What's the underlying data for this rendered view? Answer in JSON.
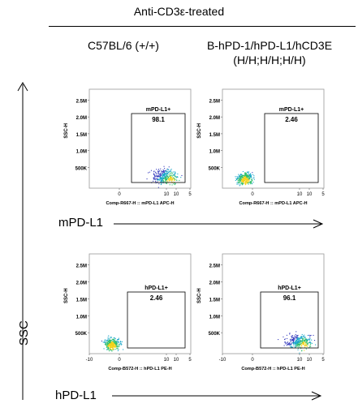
{
  "header": {
    "title": "Anti-CD3ε-treated",
    "columns": [
      "C57BL/6 (+/+)",
      "B-hPD-1/hPD-L1/hCD3E",
      "(H/H;H/H;H/H)"
    ]
  },
  "labels": {
    "row1_marker": "mPD-L1",
    "row2_marker": "hPD-L1",
    "y_axis": "SSC"
  },
  "chart_data": [
    {
      "type": "scatter",
      "panel": "row1-col1",
      "ylabel": "SSC-H",
      "xlabel": "Comp-R667-H :: mPD-L1 APC-H",
      "yticks": [
        "2.5M",
        "2.0M",
        "1.5M",
        "1.0M",
        "500K"
      ],
      "xticks": [
        "0",
        "10",
        "10",
        "5"
      ],
      "gate": {
        "name": "mPD-L1+",
        "percent": "98.1"
      },
      "population": "high-x"
    },
    {
      "type": "scatter",
      "panel": "row1-col2",
      "ylabel": "SSC-H",
      "xlabel": "Comp-R667-H :: mPD-L1 APC-H",
      "yticks": [
        "2.5M",
        "2.0M",
        "1.5M",
        "1.0M",
        "500K"
      ],
      "xticks": [
        "0",
        "10",
        "10",
        "5"
      ],
      "gate": {
        "name": "mPD-L1+",
        "percent": "2.46"
      },
      "population": "low-x"
    },
    {
      "type": "scatter",
      "panel": "row2-col1",
      "ylabel": "SSC-H",
      "xlabel": "Comp-B572-H :: hPD-L1 PE-H",
      "yticks": [
        "2.5M",
        "2.0M",
        "1.5M",
        "1.0M",
        "500K"
      ],
      "xticks": [
        "-10",
        "0",
        "10",
        "10",
        "5"
      ],
      "gate": {
        "name": "hPD-L1+",
        "percent": "2.46"
      },
      "population": "low-x"
    },
    {
      "type": "scatter",
      "panel": "row2-col2",
      "ylabel": "SSC-H",
      "xlabel": "Comp-B572-H :: hPD-L1 PE-H",
      "yticks": [
        "2.5M",
        "2.0M",
        "1.5M",
        "1.0M",
        "500K"
      ],
      "xticks": [
        "-10",
        "0",
        "10",
        "10",
        "5"
      ],
      "gate": {
        "name": "hPD-L1+",
        "percent": "96.1"
      },
      "population": "high-x"
    }
  ]
}
